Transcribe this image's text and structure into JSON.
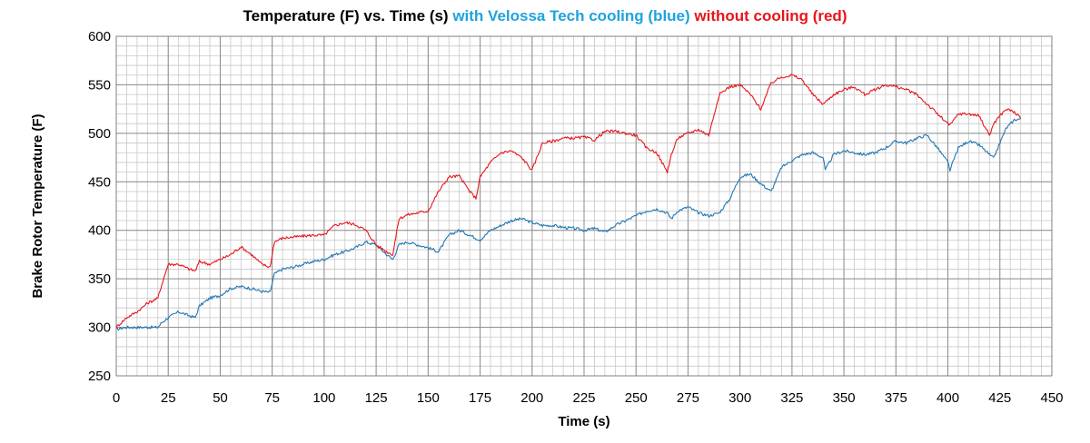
{
  "chart_data": {
    "type": "line",
    "title_parts": [
      {
        "text": "Temperature (F)  vs. Time (s) ",
        "color": "#000000"
      },
      {
        "text": "with Velossa Tech cooling (blue)",
        "color": "#1fa3dc"
      },
      {
        "text": " without cooling (red)",
        "color": "#e8141b"
      }
    ],
    "xlabel": "Time (s)",
    "ylabel": "Brake Rotor Temperature (F)",
    "xlim": [
      0,
      450
    ],
    "ylim": [
      250,
      600
    ],
    "x_ticks": [
      "0",
      "25",
      "50",
      "75",
      "100",
      "125",
      "150",
      "175",
      "200",
      "225",
      "250",
      "275",
      "300",
      "325",
      "350",
      "375",
      "400",
      "425",
      "450"
    ],
    "y_ticks": [
      "250",
      "300",
      "350",
      "400",
      "450",
      "500",
      "550",
      "600"
    ],
    "grid": true,
    "series": [
      {
        "color": "#1f77b4",
        "x": [
          0,
          5,
          10,
          15,
          20,
          22,
          25,
          30,
          35,
          38,
          40,
          45,
          50,
          55,
          60,
          65,
          70,
          74,
          76,
          80,
          85,
          90,
          95,
          100,
          105,
          110,
          115,
          120,
          125,
          130,
          133,
          136,
          140,
          145,
          150,
          155,
          160,
          165,
          170,
          173,
          175,
          180,
          185,
          190,
          195,
          200,
          205,
          210,
          215,
          220,
          225,
          230,
          235,
          240,
          245,
          250,
          255,
          260,
          265,
          267,
          270,
          275,
          280,
          285,
          290,
          295,
          300,
          305,
          310,
          315,
          320,
          325,
          330,
          335,
          340,
          341,
          345,
          350,
          355,
          360,
          365,
          370,
          375,
          380,
          385,
          390,
          395,
          400,
          401,
          405,
          410,
          415,
          420,
          422,
          425,
          428,
          432,
          435
        ],
        "y": [
          298,
          300,
          300,
          300,
          300,
          305,
          310,
          316,
          312,
          310,
          322,
          330,
          333,
          340,
          342,
          340,
          337,
          336,
          355,
          360,
          362,
          365,
          368,
          370,
          375,
          378,
          382,
          388,
          385,
          375,
          370,
          385,
          388,
          385,
          382,
          378,
          395,
          400,
          395,
          392,
          390,
          400,
          405,
          410,
          412,
          408,
          405,
          405,
          403,
          402,
          400,
          402,
          398,
          405,
          410,
          415,
          420,
          422,
          418,
          412,
          420,
          424,
          418,
          415,
          418,
          432,
          455,
          458,
          448,
          440,
          465,
          472,
          478,
          480,
          475,
          462,
          478,
          482,
          480,
          478,
          480,
          485,
          492,
          490,
          495,
          498,
          485,
          470,
          462,
          485,
          492,
          488,
          478,
          474,
          490,
          505,
          514,
          515
        ]
      },
      {
        "color": "#e8141b",
        "x": [
          0,
          5,
          10,
          15,
          20,
          22,
          25,
          30,
          35,
          38,
          40,
          45,
          50,
          55,
          60,
          65,
          70,
          74,
          76,
          80,
          85,
          90,
          95,
          100,
          105,
          110,
          115,
          120,
          125,
          130,
          133,
          136,
          140,
          145,
          150,
          155,
          160,
          165,
          170,
          173,
          175,
          180,
          185,
          190,
          195,
          200,
          205,
          210,
          215,
          220,
          225,
          230,
          235,
          240,
          245,
          250,
          255,
          260,
          265,
          267,
          270,
          275,
          280,
          285,
          290,
          295,
          300,
          305,
          310,
          315,
          320,
          325,
          330,
          335,
          340,
          341,
          345,
          350,
          355,
          360,
          365,
          370,
          375,
          380,
          385,
          390,
          395,
          400,
          401,
          405,
          410,
          415,
          420,
          422,
          425,
          428,
          432,
          435
        ],
        "y": [
          300,
          310,
          316,
          325,
          330,
          345,
          365,
          365,
          360,
          358,
          368,
          365,
          370,
          375,
          383,
          375,
          365,
          362,
          388,
          392,
          393,
          394,
          395,
          395,
          405,
          408,
          406,
          400,
          385,
          378,
          375,
          412,
          416,
          418,
          420,
          440,
          455,
          456,
          440,
          433,
          455,
          470,
          480,
          482,
          475,
          462,
          490,
          492,
          495,
          495,
          496,
          493,
          502,
          502,
          500,
          498,
          485,
          480,
          460,
          478,
          495,
          500,
          504,
          498,
          540,
          548,
          550,
          540,
          525,
          552,
          558,
          560,
          555,
          540,
          530,
          532,
          540,
          545,
          548,
          540,
          545,
          550,
          548,
          545,
          540,
          530,
          520,
          510,
          508,
          520,
          520,
          518,
          498,
          510,
          518,
          525,
          522,
          515
        ]
      }
    ]
  }
}
